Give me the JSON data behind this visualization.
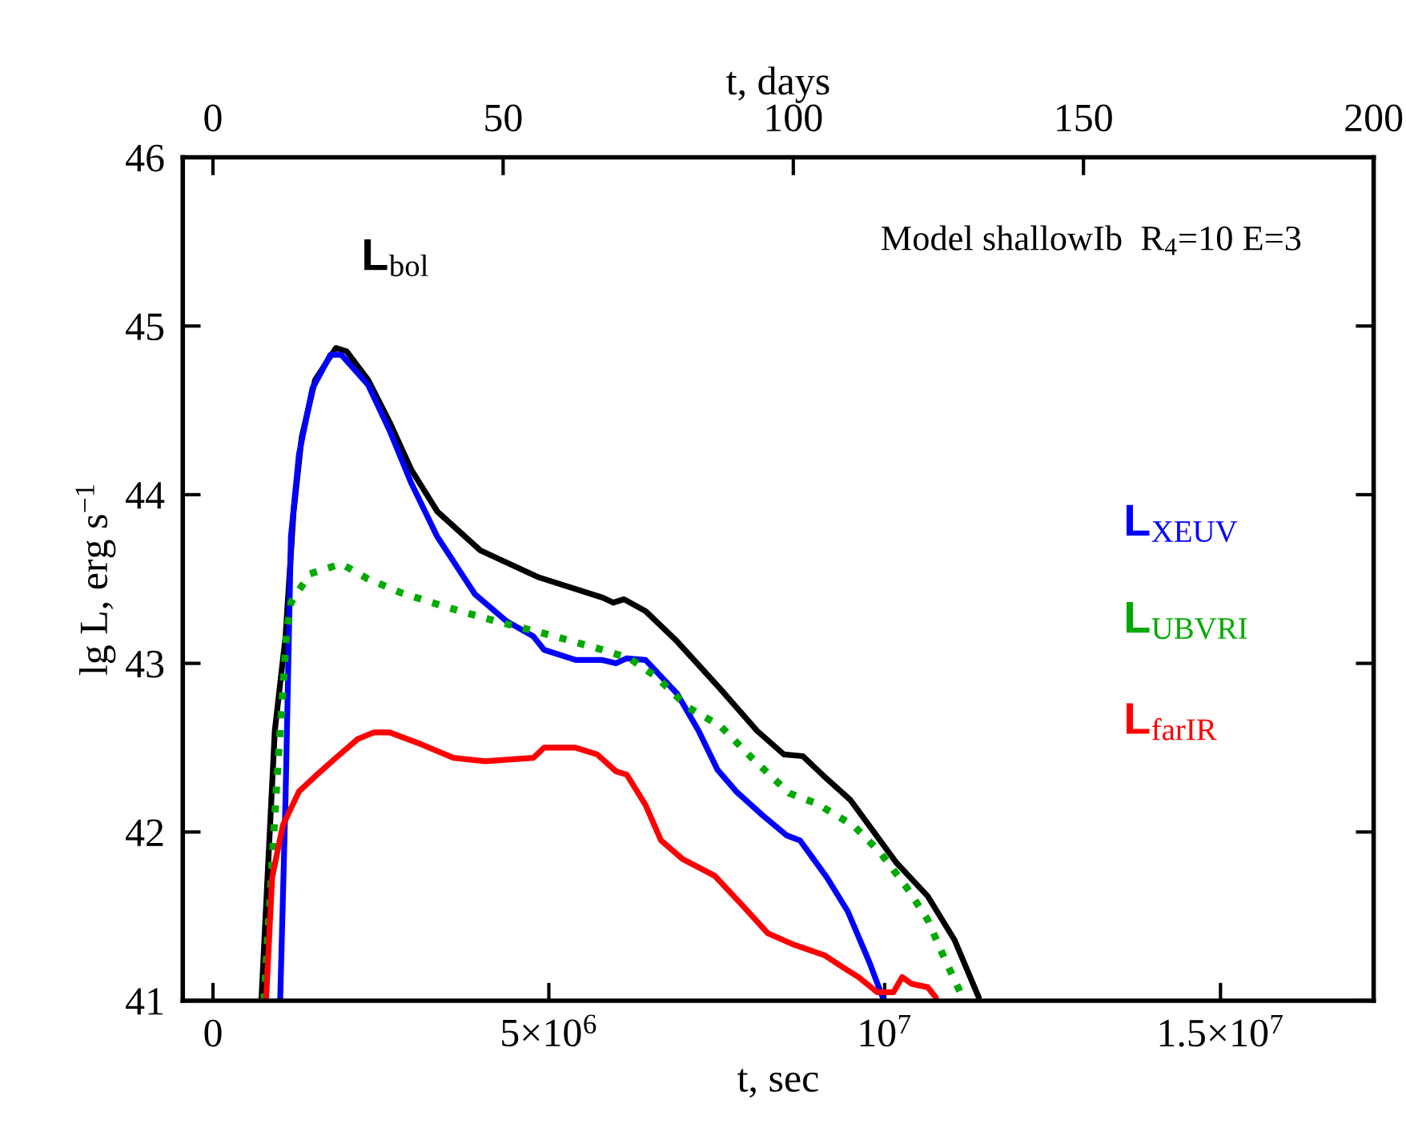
{
  "chart_data": {
    "type": "line",
    "xlabel": "t, sec",
    "ylabel": "lg L, erg s$^{−1}$",
    "x2label": "t, days",
    "xlim": [
      -450000,
      17280000
    ],
    "xticks": [
      0,
      {
        "value": 5000000,
        "label": "5×10$^{6}$"
      },
      {
        "value": 10000000,
        "label": "10$^{7}$"
      },
      {
        "value": 15000000,
        "label": "1.5×10$^{7}$"
      }
    ],
    "x2lim": [
      -5.2,
      200
    ],
    "x2ticks": [
      0,
      50,
      100,
      150,
      200
    ],
    "ylim": [
      41,
      46
    ],
    "yticks": [
      41,
      42,
      43,
      44,
      45,
      46
    ],
    "grid": false,
    "legend": false,
    "marker": "none",
    "annotations": [
      "Model shallowIb  R$_{4}$=10 E=3"
    ],
    "series": [
      {
        "name": "L$_{bol}$",
        "color": "#000000",
        "line_style": "solid",
        "x": [
          720000,
          920000,
          1080000,
          1200000,
          1320000,
          1520000,
          1830000,
          1990000,
          2310000,
          2630000,
          2950000,
          3340000,
          3980000,
          4850000,
          5800000,
          5960000,
          6120000,
          6440000,
          6910000,
          7550000,
          8100000,
          8500000,
          8780000,
          9100000,
          9490000,
          10170000,
          10640000,
          11040000,
          11400000
        ],
        "values": [
          41.0,
          42.6,
          43.16,
          43.9,
          44.34,
          44.68,
          44.87,
          44.85,
          44.68,
          44.43,
          44.15,
          43.9,
          43.67,
          43.51,
          43.39,
          43.36,
          43.38,
          43.31,
          43.13,
          42.85,
          42.6,
          42.46,
          42.45,
          42.33,
          42.19,
          41.82,
          41.62,
          41.36,
          41.02
        ]
      },
      {
        "name": "L$_{XEUV}$",
        "color": "#0000ff",
        "line_style": "solid",
        "x": [
          1000000,
          1080000,
          1160000,
          1280000,
          1480000,
          1750000,
          1910000,
          2310000,
          2630000,
          2950000,
          3340000,
          3900000,
          4370000,
          4770000,
          4930000,
          5400000,
          5800000,
          6000000,
          6160000,
          6440000,
          6910000,
          7230000,
          7510000,
          7790000,
          8180000,
          8540000,
          8740000,
          9140000,
          9450000,
          9770000,
          9970000
        ],
        "values": [
          41.0,
          42.2,
          43.75,
          44.24,
          44.63,
          44.83,
          44.83,
          44.65,
          44.38,
          44.07,
          43.75,
          43.41,
          43.25,
          43.16,
          43.08,
          43.02,
          43.02,
          43.0,
          43.03,
          43.02,
          42.82,
          42.6,
          42.37,
          42.24,
          42.1,
          41.98,
          41.95,
          41.73,
          41.53,
          41.23,
          41.02
        ]
      },
      {
        "name": "L$_{UBVRI}$",
        "color": "#00aa00",
        "line_style": "dotted",
        "x": [
          760000,
          950000,
          1100000,
          1160000,
          1440000,
          1910000,
          2310000,
          2790000,
          3420000,
          4210000,
          5000000,
          5800000,
          6200000,
          6600000,
          7070000,
          7550000,
          8020000,
          8580000,
          8980000,
          9530000,
          9930000,
          10330000,
          10640000,
          10880000,
          11160000
        ],
        "values": [
          41.0,
          42.3,
          43.2,
          43.36,
          43.53,
          43.59,
          43.5,
          43.42,
          43.34,
          43.25,
          43.17,
          43.08,
          43.03,
          42.92,
          42.74,
          42.63,
          42.44,
          42.23,
          42.17,
          42.04,
          41.88,
          41.67,
          41.48,
          41.26,
          41.02
        ]
      },
      {
        "name": "L$_{farIR}$",
        "color": "#ff0000",
        "line_style": "solid",
        "x": [
          790000,
          880000,
          1040000,
          1280000,
          1520000,
          1830000,
          2150000,
          2390000,
          2630000,
          3100000,
          3580000,
          4050000,
          4770000,
          4930000,
          5400000,
          5720000,
          6000000,
          6160000,
          6440000,
          6670000,
          6990000,
          7470000,
          7870000,
          8260000,
          8660000,
          9100000,
          9410000,
          9610000,
          9890000,
          10130000,
          10260000,
          10400000,
          10640000,
          10760000
        ],
        "values": [
          41.0,
          41.73,
          42.04,
          42.24,
          42.33,
          42.44,
          42.55,
          42.59,
          42.59,
          42.52,
          42.44,
          42.42,
          42.44,
          42.5,
          42.5,
          42.46,
          42.36,
          42.34,
          42.16,
          41.95,
          41.84,
          41.74,
          41.57,
          41.4,
          41.33,
          41.27,
          41.19,
          41.14,
          41.05,
          41.05,
          41.14,
          41.1,
          41.08,
          41.02
        ]
      }
    ]
  }
}
